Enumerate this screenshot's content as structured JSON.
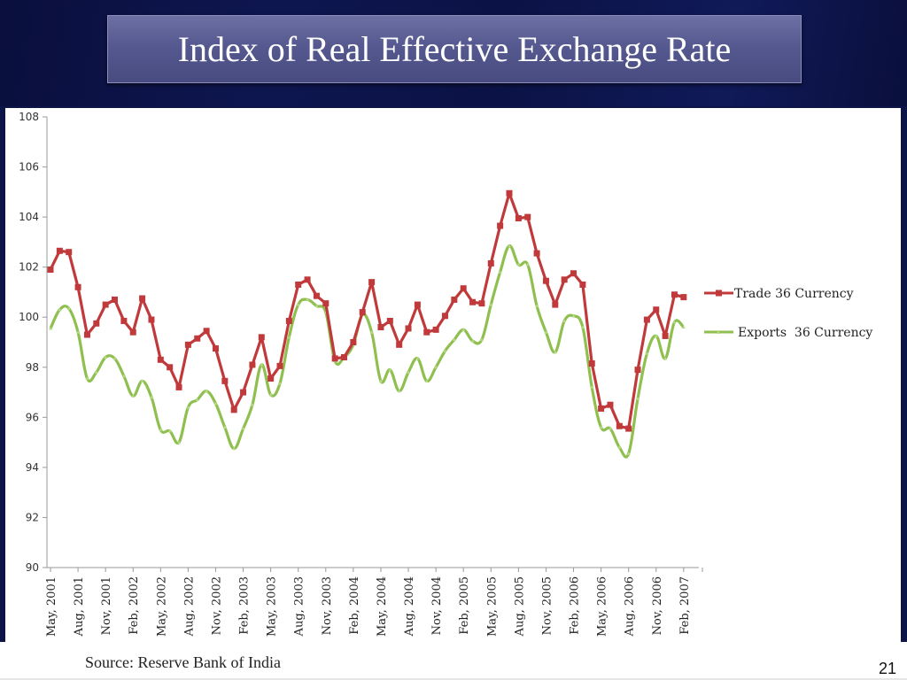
{
  "slide": {
    "title": "Index of Real Effective Exchange Rate",
    "source": "Source: Reserve Bank of  India",
    "page_number": "21"
  },
  "colors": {
    "background_navy": "#0d1448",
    "title_box": "#55598f",
    "trade_series": "#c0393b",
    "exports_series": "#8fbf4e"
  },
  "chart_data": {
    "type": "line",
    "title": "Index of Real Effective Exchange Rate",
    "xlabel": "",
    "ylabel": "",
    "ylim": [
      90,
      108
    ],
    "yticks": [
      90,
      92,
      94,
      96,
      98,
      100,
      102,
      104,
      106,
      108
    ],
    "grid": false,
    "legend_position": "right",
    "x_tick_labels": [
      "May, 2001",
      "Aug, 2001",
      "Nov, 2001",
      "Feb, 2002",
      "May, 2002",
      "Aug, 2002",
      "Nov, 2002",
      "Feb, 2003",
      "May, 2003",
      "Aug, 2003",
      "Nov, 2003",
      "Feb, 2004",
      "May, 2004",
      "Aug, 2004",
      "Nov, 2004",
      "Feb, 2005",
      "May, 2005",
      "Aug, 2005",
      "Nov, 2005",
      "Feb, 2006",
      "May, 2006",
      "Aug, 2006",
      "Nov, 2006",
      "Feb, 2007"
    ],
    "x_range": [
      "May, 2001",
      "Feb, 2007"
    ],
    "x_frequency": "monthly",
    "series": [
      {
        "name": "Trade 36 Currency",
        "marker": "square",
        "values": [
          101.9,
          102.65,
          102.6,
          101.2,
          99.3,
          99.75,
          100.5,
          100.7,
          99.85,
          99.4,
          100.75,
          99.9,
          98.3,
          98.0,
          97.2,
          98.9,
          99.15,
          99.45,
          98.75,
          97.45,
          96.3,
          97.0,
          98.1,
          99.2,
          97.55,
          98.05,
          99.85,
          101.3,
          101.5,
          100.85,
          100.55,
          98.35,
          98.4,
          99.0,
          100.2,
          101.4,
          99.6,
          99.85,
          98.9,
          99.55,
          100.5,
          99.4,
          99.5,
          100.05,
          100.7,
          101.15,
          100.6,
          100.55,
          102.15,
          103.65,
          104.95,
          103.95,
          104.0,
          102.55,
          101.45,
          100.5,
          101.5,
          101.75,
          101.3,
          98.15,
          96.35,
          96.5,
          95.65,
          95.55,
          97.9,
          99.9,
          100.3,
          99.25,
          100.9,
          100.8
        ]
      },
      {
        "name": "Exports  36 Currency",
        "marker": "triangle",
        "values": [
          99.55,
          100.3,
          100.35,
          99.4,
          97.55,
          97.8,
          98.4,
          98.35,
          97.65,
          96.85,
          97.45,
          96.8,
          95.5,
          95.45,
          95.0,
          96.4,
          96.7,
          97.05,
          96.55,
          95.6,
          94.75,
          95.55,
          96.5,
          98.1,
          96.9,
          97.35,
          99.2,
          100.5,
          100.7,
          100.45,
          100.2,
          98.25,
          98.4,
          98.9,
          100.1,
          99.4,
          97.45,
          97.9,
          97.05,
          97.8,
          98.35,
          97.45,
          98.0,
          98.65,
          99.1,
          99.5,
          99.05,
          99.1,
          100.5,
          101.8,
          102.85,
          102.1,
          102.1,
          100.45,
          99.4,
          98.6,
          99.85,
          100.05,
          99.6,
          97.2,
          95.6,
          95.55,
          94.8,
          94.55,
          96.75,
          98.55,
          99.25,
          98.35,
          99.8,
          99.6
        ]
      }
    ]
  }
}
